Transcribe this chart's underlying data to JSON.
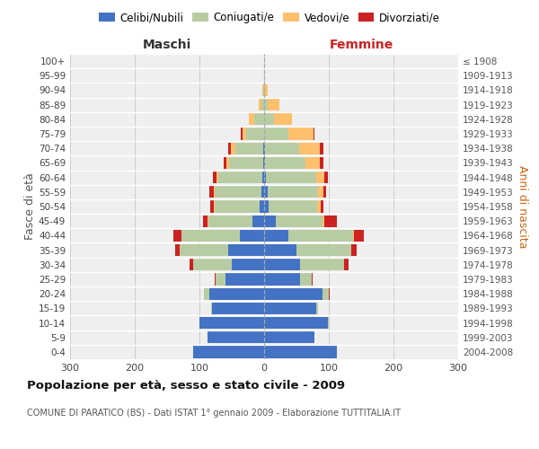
{
  "age_groups": [
    "0-4",
    "5-9",
    "10-14",
    "15-19",
    "20-24",
    "25-29",
    "30-34",
    "35-39",
    "40-44",
    "45-49",
    "50-54",
    "55-59",
    "60-64",
    "65-69",
    "70-74",
    "75-79",
    "80-84",
    "85-89",
    "90-94",
    "95-99",
    "100+"
  ],
  "birth_years": [
    "2004-2008",
    "1999-2003",
    "1994-1998",
    "1989-1993",
    "1984-1988",
    "1979-1983",
    "1974-1978",
    "1969-1973",
    "1964-1968",
    "1959-1963",
    "1954-1958",
    "1949-1953",
    "1944-1948",
    "1939-1943",
    "1934-1938",
    "1929-1933",
    "1924-1928",
    "1919-1923",
    "1914-1918",
    "1909-1913",
    "≤ 1908"
  ],
  "males": {
    "celibi": [
      110,
      88,
      100,
      80,
      85,
      60,
      50,
      55,
      38,
      18,
      7,
      4,
      3,
      2,
      2,
      0,
      0,
      0,
      0,
      0,
      0
    ],
    "coniugati": [
      0,
      0,
      0,
      2,
      8,
      15,
      60,
      75,
      90,
      68,
      70,
      72,
      68,
      52,
      42,
      28,
      15,
      4,
      2,
      0,
      0
    ],
    "vedovi": [
      0,
      0,
      0,
      0,
      0,
      0,
      0,
      0,
      0,
      1,
      1,
      2,
      3,
      5,
      7,
      6,
      8,
      5,
      1,
      0,
      0
    ],
    "divorziati": [
      0,
      0,
      0,
      0,
      0,
      2,
      5,
      8,
      12,
      8,
      5,
      7,
      5,
      3,
      4,
      2,
      0,
      0,
      0,
      0,
      0
    ]
  },
  "females": {
    "nubili": [
      112,
      78,
      98,
      80,
      90,
      55,
      55,
      50,
      38,
      18,
      7,
      5,
      3,
      2,
      2,
      0,
      0,
      0,
      0,
      0,
      0
    ],
    "coniugate": [
      0,
      0,
      2,
      3,
      10,
      18,
      68,
      85,
      100,
      72,
      75,
      78,
      78,
      62,
      52,
      38,
      15,
      5,
      2,
      1,
      0
    ],
    "vedove": [
      0,
      0,
      0,
      0,
      0,
      0,
      0,
      0,
      1,
      3,
      5,
      8,
      12,
      22,
      32,
      38,
      28,
      18,
      4,
      1,
      0
    ],
    "divorziate": [
      0,
      0,
      0,
      0,
      1,
      2,
      7,
      8,
      15,
      20,
      5,
      5,
      6,
      5,
      5,
      2,
      0,
      0,
      0,
      0,
      0
    ]
  },
  "colors": {
    "celibi": "#4472c4",
    "coniugati": "#b8cca4",
    "vedovi": "#ffc06e",
    "divorziati": "#cc2222"
  },
  "xlim": 300,
  "title": "Popolazione per età, sesso e stato civile - 2009",
  "subtitle": "COMUNE DI PARATICO (BS) - Dati ISTAT 1° gennaio 2009 - Elaborazione TUTTITALIA.IT",
  "ylabel_left": "Fasce di età",
  "ylabel_right": "Anni di nascita",
  "xlabel_left": "Maschi",
  "xlabel_right": "Femmine",
  "legend_labels": [
    "Celibi/Nubili",
    "Coniugati/e",
    "Vedovi/e",
    "Divorziati/e"
  ],
  "bg_color": "#ffffff",
  "plot_bg_color": "#efefef"
}
